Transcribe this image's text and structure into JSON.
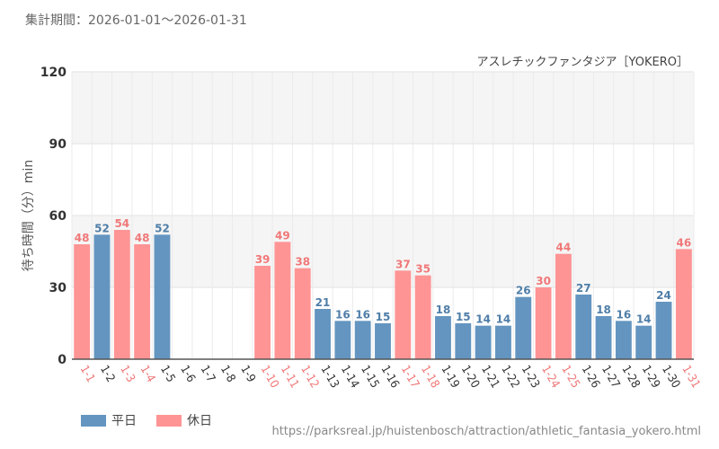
{
  "header": {
    "period": "集計期間：2026-01-01～2026-01-31"
  },
  "chart_data": {
    "type": "bar",
    "title": "",
    "subtitle": "アスレチックファンタジア［YOKERO］",
    "ylabel": "待ち時間（分）min",
    "xlabel": "",
    "ylim": [
      0,
      120
    ],
    "yticks": [
      0,
      30,
      60,
      90,
      120
    ],
    "grid": true,
    "categories": [
      "1-1",
      "1-2",
      "1-3",
      "1-4",
      "1-5",
      "1-6",
      "1-7",
      "1-8",
      "1-9",
      "1-10",
      "1-11",
      "1-12",
      "1-13",
      "1-14",
      "1-15",
      "1-16",
      "1-17",
      "1-18",
      "1-19",
      "1-20",
      "1-21",
      "1-22",
      "1-23",
      "1-24",
      "1-25",
      "1-26",
      "1-27",
      "1-28",
      "1-29",
      "1-30",
      "1-31"
    ],
    "values": [
      48,
      52,
      54,
      48,
      52,
      null,
      null,
      null,
      null,
      39,
      49,
      38,
      21,
      16,
      16,
      15,
      37,
      35,
      18,
      15,
      14,
      14,
      26,
      30,
      44,
      27,
      18,
      16,
      14,
      24,
      46
    ],
    "day_type": [
      "holiday",
      "weekday",
      "holiday",
      "holiday",
      "weekday",
      "weekday",
      "weekday",
      "weekday",
      "weekday",
      "holiday",
      "holiday",
      "holiday",
      "weekday",
      "weekday",
      "weekday",
      "weekday",
      "holiday",
      "holiday",
      "weekday",
      "weekday",
      "weekday",
      "weekday",
      "weekday",
      "holiday",
      "holiday",
      "weekday",
      "weekday",
      "weekday",
      "weekday",
      "weekday",
      "holiday"
    ],
    "legend": [
      {
        "name": "平日",
        "key": "weekday"
      },
      {
        "name": "休日",
        "key": "holiday"
      }
    ]
  },
  "colors": {
    "weekday": "#6495c0",
    "holiday": "#ff9494",
    "weekday_text": "#4f7ea8",
    "holiday_text": "#f07878",
    "band": "#f5f5f5",
    "grid": "#e2e2e2"
  },
  "footer": {
    "source": "https://parksreal.jp/huistenbosch/attraction/athletic_fantasia_yokero.html"
  }
}
